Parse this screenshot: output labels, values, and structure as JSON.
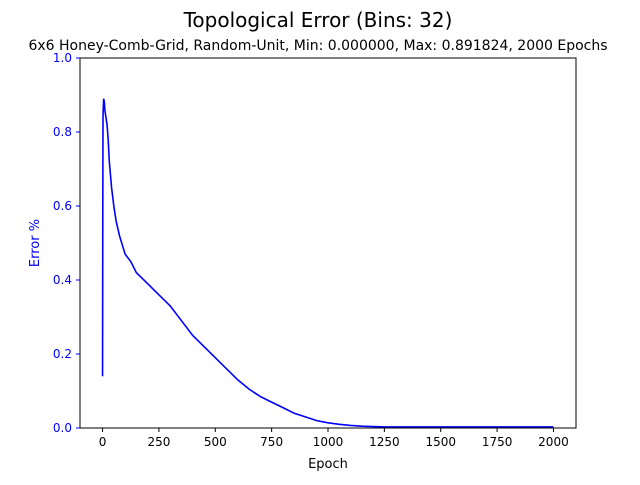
{
  "chart_data": {
    "type": "line",
    "title": "Topological Error (Bins: 32)",
    "subtitle": "6x6 Honey-Comb-Grid, Random-Unit, Min: 0.000000, Max: 0.891824, 2000 Epochs",
    "xlabel": "Epoch",
    "ylabel": "Error %",
    "xlim": [
      -100,
      2100
    ],
    "ylim": [
      0,
      1.0
    ],
    "x_ticks": [
      0,
      250,
      500,
      750,
      1000,
      1250,
      1500,
      1750,
      2000
    ],
    "x_tick_labels": [
      "0",
      "250",
      "500",
      "750",
      "1000",
      "1250",
      "1500",
      "1750",
      "2000"
    ],
    "y_ticks": [
      0.0,
      0.2,
      0.4,
      0.6,
      0.8,
      1.0
    ],
    "y_tick_labels": [
      "0.0",
      "0.2",
      "0.4",
      "0.6",
      "0.8",
      "1.0"
    ],
    "grid": false,
    "colors": {
      "line": "#0000ff",
      "ylabel": "#0000ff",
      "yticks": "#0000ff"
    },
    "series": [
      {
        "x": [
          0,
          1,
          2,
          3,
          5,
          8,
          10,
          15,
          20,
          25,
          30,
          40,
          50,
          60,
          75,
          100,
          125,
          150,
          200,
          250,
          300,
          350,
          400,
          450,
          500,
          550,
          600,
          650,
          700,
          750,
          800,
          850,
          900,
          950,
          1000,
          1050,
          1100,
          1150,
          1200,
          1250,
          1300,
          1400,
          1500,
          1600,
          1700,
          1800,
          1900,
          2000
        ],
        "y": [
          0.14,
          0.55,
          0.84,
          0.86,
          0.89,
          0.88,
          0.86,
          0.84,
          0.82,
          0.78,
          0.72,
          0.65,
          0.6,
          0.56,
          0.52,
          0.47,
          0.45,
          0.42,
          0.39,
          0.36,
          0.33,
          0.29,
          0.25,
          0.22,
          0.19,
          0.16,
          0.13,
          0.105,
          0.085,
          0.07,
          0.055,
          0.04,
          0.03,
          0.02,
          0.014,
          0.01,
          0.007,
          0.005,
          0.004,
          0.003,
          0.003,
          0.003,
          0.003,
          0.003,
          0.003,
          0.003,
          0.003,
          0.003
        ]
      }
    ]
  }
}
